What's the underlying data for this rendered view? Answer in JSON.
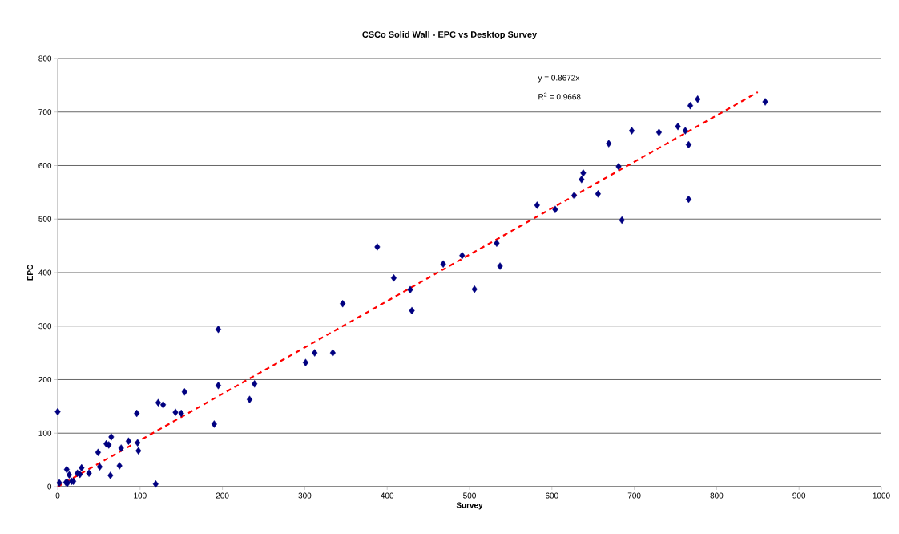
{
  "chart_data": {
    "type": "scatter",
    "title": "CSCo Solid Wall - EPC vs Desktop Survey",
    "xlabel": "Survey",
    "ylabel": "EPC",
    "xlim": [
      0,
      1000
    ],
    "xticks": [
      0,
      100,
      200,
      300,
      400,
      500,
      600,
      700,
      800,
      900,
      1000
    ],
    "ylim": [
      0,
      800
    ],
    "yticks": [
      0,
      100,
      200,
      300,
      400,
      500,
      600,
      700,
      800
    ],
    "grid": "y",
    "legend": false,
    "annotations": [
      "y = 0.8672x",
      "R$^{2}$ = 0.9668"
    ],
    "series": [
      {
        "color": "#000080",
        "marker": "diamond",
        "x": [
          0,
          2,
          10,
          11,
          12,
          14,
          17,
          19,
          24,
          27,
          29,
          38,
          49,
          51,
          59,
          62,
          64,
          65,
          75,
          77,
          86,
          97,
          96,
          98,
          119,
          122,
          128,
          143,
          150,
          154,
          190,
          195,
          195,
          233,
          239,
          301,
          312,
          334,
          346,
          388,
          408,
          428,
          430,
          468,
          491,
          506,
          533,
          537,
          582,
          604,
          627,
          636,
          638,
          656,
          669,
          681,
          685,
          697,
          730,
          753,
          762,
          766,
          766,
          768,
          777,
          859
        ],
        "values": [
          140,
          7,
          8,
          32,
          7,
          22,
          10,
          10,
          25,
          23,
          35,
          25,
          64,
          37,
          80,
          78,
          21,
          93,
          39,
          72,
          85,
          82,
          137,
          67,
          5,
          157,
          153,
          139,
          137,
          177,
          117,
          189,
          294,
          163,
          192,
          232,
          250,
          250,
          342,
          448,
          390,
          368,
          329,
          416,
          432,
          369,
          455,
          412,
          526,
          518,
          544,
          574,
          586,
          547,
          641,
          598,
          498,
          665,
          662,
          673,
          665,
          639,
          537,
          712,
          724,
          719
        ]
      },
      {
        "type": "line",
        "color": "#ff0000",
        "line_style": "dashed",
        "marker": "none",
        "x": [
          0,
          850
        ],
        "values": [
          0,
          737
        ]
      }
    ]
  }
}
